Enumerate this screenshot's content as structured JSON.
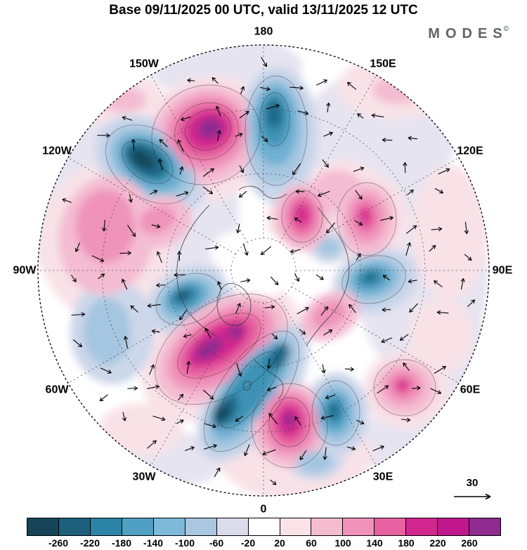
{
  "header": {
    "title": "Base 09/11/2025 00 UTC, valid 13/11/2025 12 UTC",
    "logo": "MODES",
    "logo_mark": "©"
  },
  "map": {
    "projection": "northern-hemisphere polar stereographic",
    "lon_labels": [
      {
        "text": "180"
      },
      {
        "text": "150E"
      },
      {
        "text": "120E"
      },
      {
        "text": "90E"
      },
      {
        "text": "60E"
      },
      {
        "text": "30E"
      },
      {
        "text": "0"
      },
      {
        "text": "30W"
      },
      {
        "text": "60W"
      },
      {
        "text": "90W"
      },
      {
        "text": "120W"
      },
      {
        "text": "150W"
      }
    ],
    "reference_arrow_label": "30"
  },
  "colorbar": {
    "tick_labels": [
      "-260",
      "-220",
      "-180",
      "-140",
      "-100",
      "-60",
      "-20",
      "20",
      "60",
      "100",
      "140",
      "180",
      "220",
      "260"
    ],
    "colors": [
      "#16455a",
      "#1d607c",
      "#2b84a6",
      "#4fa0c2",
      "#7db9d8",
      "#abc7e0",
      "#dadcec",
      "#ffffff",
      "#f9e2e8",
      "#f5bcd0",
      "#ef93ba",
      "#e7609f",
      "#d3268e",
      "#c0188c",
      "#8f2a90"
    ]
  }
}
